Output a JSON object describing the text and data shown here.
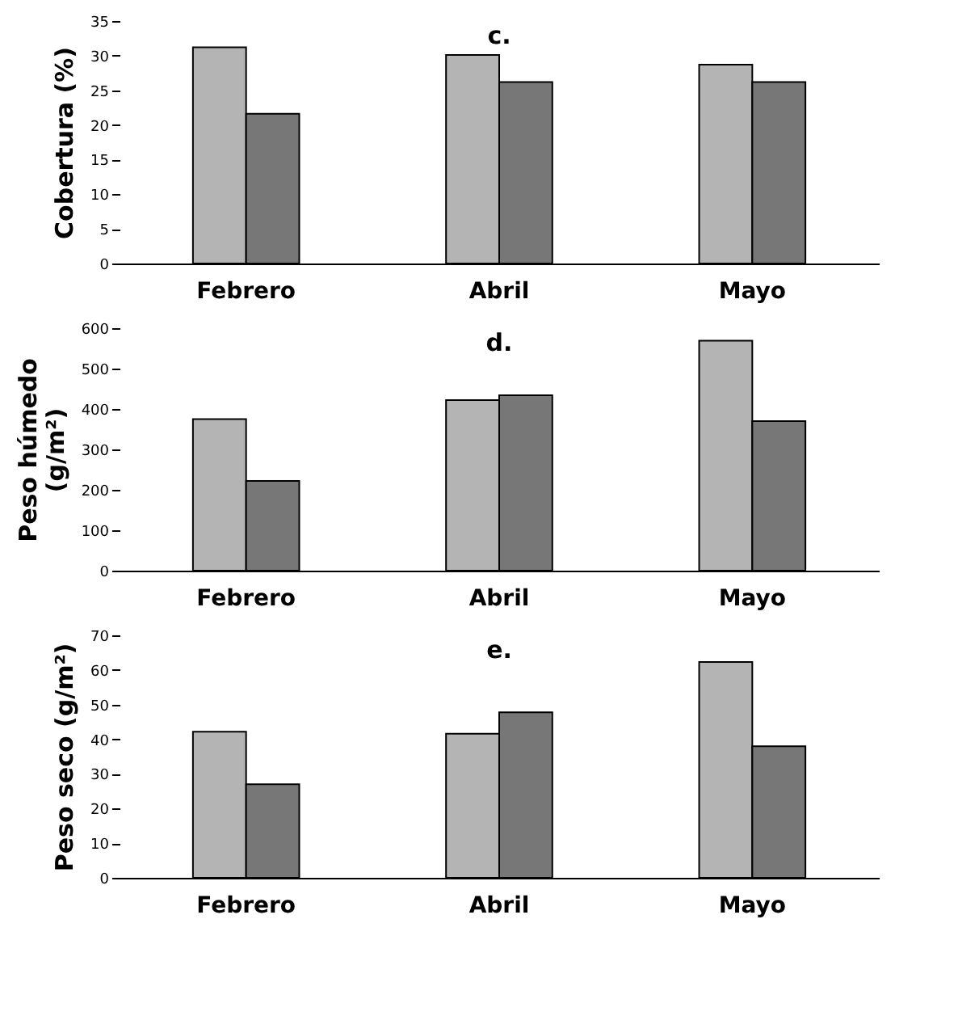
{
  "chart_data": [
    {
      "type": "bar",
      "ylabel": "Cobertura (%)",
      "categories": [
        "Febrero",
        "Abril",
        "Mayo"
      ],
      "ylim": [
        0,
        35
      ],
      "yticks": [
        0,
        5,
        10,
        15,
        20,
        25,
        30,
        35
      ],
      "grid": false,
      "legend": false,
      "annotations": [
        "c."
      ],
      "series": [
        {
          "color": "#b4b4b4",
          "values": [
            31.2,
            30.1,
            28.7
          ]
        },
        {
          "color": "#777777",
          "values": [
            21.6,
            26.2,
            26.2
          ]
        }
      ]
    },
    {
      "type": "bar",
      "ylabel": "Peso húmedo (g/m²)",
      "categories": [
        "Febrero",
        "Abril",
        "Mayo"
      ],
      "ylim": [
        0,
        600
      ],
      "yticks": [
        0,
        100,
        200,
        300,
        400,
        500,
        600
      ],
      "grid": false,
      "legend": false,
      "annotations": [
        "d."
      ],
      "series": [
        {
          "color": "#b4b4b4",
          "values": [
            375,
            422,
            569
          ]
        },
        {
          "color": "#777777",
          "values": [
            222,
            434,
            370
          ]
        }
      ]
    },
    {
      "type": "bar",
      "ylabel": "Peso seco (g/m²)",
      "categories": [
        "Febrero",
        "Abril",
        "Mayo"
      ],
      "ylim": [
        0,
        70
      ],
      "yticks": [
        0,
        10,
        20,
        30,
        40,
        50,
        60,
        70
      ],
      "grid": false,
      "legend": false,
      "annotations": [
        "e."
      ],
      "series": [
        {
          "color": "#b4b4b4",
          "values": [
            42.2,
            41.6,
            62.3
          ]
        },
        {
          "color": "#777777",
          "values": [
            27.0,
            47.8,
            38.0
          ]
        }
      ]
    }
  ]
}
